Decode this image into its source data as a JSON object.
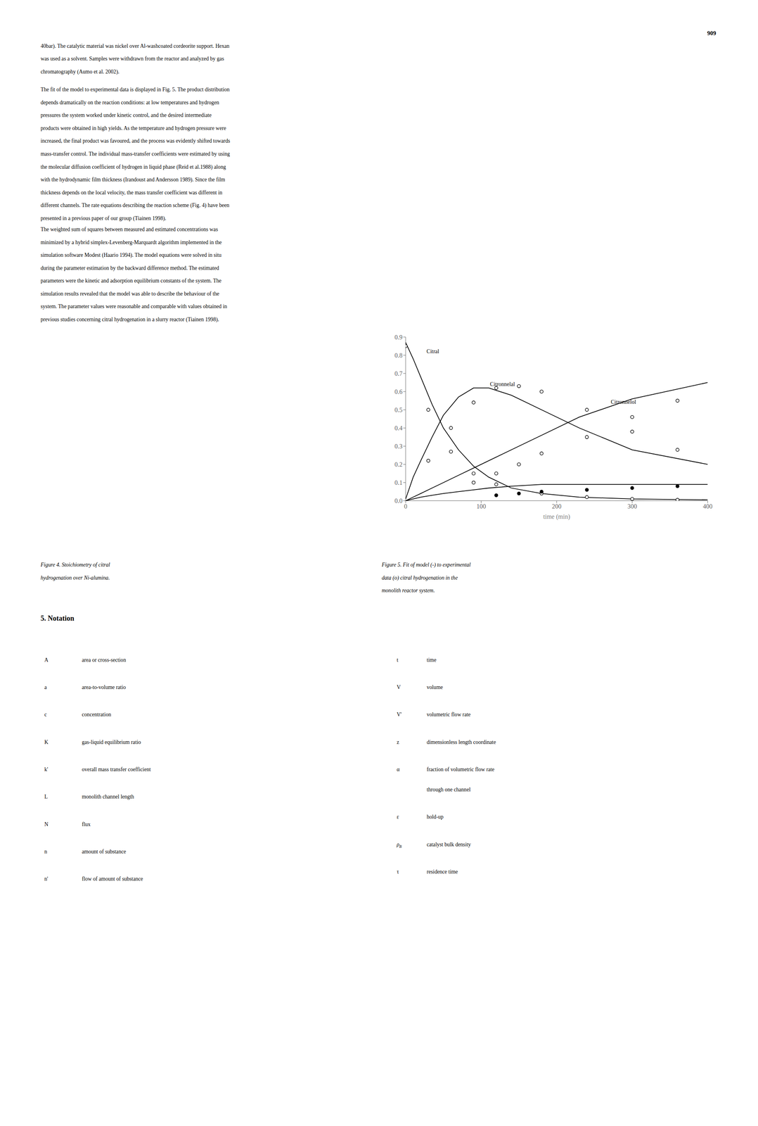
{
  "chart_data": {
    "type": "line",
    "xlabel": "time (min)",
    "xlim": [
      0,
      400
    ],
    "xticks": [
      0,
      100,
      200,
      300,
      400
    ],
    "ylim": [
      0.0,
      0.9
    ],
    "yticks": [
      {
        "value": 0.0,
        "label": "0.0"
      },
      0.1,
      0.2,
      0.3,
      0.4,
      0.5,
      0.6,
      0.7,
      0.8,
      0.9
    ],
    "series": [
      {
        "name": "Citral",
        "type": "line",
        "color": "#000000",
        "line_style": "solid",
        "x": [
          0,
          10,
          20,
          35,
          50,
          70,
          90,
          110,
          140,
          180,
          230,
          300,
          400
        ],
        "values": [
          0.87,
          0.78,
          0.68,
          0.53,
          0.4,
          0.28,
          0.19,
          0.13,
          0.07,
          0.04,
          0.02,
          0.01,
          0.005
        ]
      },
      {
        "name": "Citronnelal",
        "type": "line",
        "color": "#000000",
        "line_style": "solid",
        "x": [
          0,
          10,
          20,
          35,
          50,
          70,
          90,
          110,
          140,
          180,
          230,
          300,
          400
        ],
        "values": [
          0.01,
          0.13,
          0.22,
          0.35,
          0.47,
          0.57,
          0.62,
          0.62,
          0.58,
          0.5,
          0.4,
          0.28,
          0.2
        ]
      },
      {
        "name": "Citronnelol",
        "type": "line",
        "color": "#000000",
        "line_style": "solid",
        "x": [
          0,
          10,
          20,
          35,
          50,
          70,
          90,
          110,
          140,
          180,
          230,
          300,
          400
        ],
        "values": [
          0.0,
          0.02,
          0.04,
          0.07,
          0.1,
          0.14,
          0.18,
          0.22,
          0.28,
          0.36,
          0.46,
          0.56,
          0.65
        ]
      },
      {
        "type": "line",
        "color": "#000000",
        "line_style": "solid",
        "x": [
          0,
          10,
          20,
          35,
          50,
          70,
          90,
          110,
          140,
          180,
          230,
          300,
          400
        ],
        "values": [
          0.0,
          0.01,
          0.02,
          0.03,
          0.04,
          0.05,
          0.06,
          0.07,
          0.08,
          0.09,
          0.09,
          0.09,
          0.09
        ]
      },
      {
        "name": "Citral",
        "type": "scatter",
        "color": "#000000",
        "marker": "open_circle",
        "x": [
          0,
          30,
          60,
          90,
          120,
          180,
          240,
          300,
          360
        ],
        "values": [
          0.85,
          0.5,
          0.27,
          0.15,
          0.09,
          0.04,
          0.02,
          0.01,
          0.005
        ]
      },
      {
        "name": "Citronnelal",
        "type": "scatter",
        "color": "#000000",
        "marker": "open_circle",
        "x": [
          30,
          60,
          90,
          120,
          150,
          180,
          240,
          300,
          360
        ],
        "values": [
          0.22,
          0.4,
          0.54,
          0.62,
          0.63,
          0.6,
          0.5,
          0.38,
          0.28
        ]
      },
      {
        "name": "Citronnelol",
        "type": "scatter",
        "color": "#000000",
        "marker": "open_circle",
        "x": [
          90,
          120,
          150,
          180,
          240,
          300,
          360
        ],
        "values": [
          0.1,
          0.15,
          0.2,
          0.26,
          0.35,
          0.46,
          0.55
        ]
      },
      {
        "type": "scatter",
        "color": "#000000",
        "marker": "filled_circle",
        "x": [
          120,
          150,
          180,
          240,
          300,
          360
        ],
        "values": [
          0.03,
          0.04,
          0.05,
          0.06,
          0.07,
          0.08
        ]
      }
    ],
    "annotations": [
      "Citral",
      "Citronnelal",
      "Citronnelol"
    ]
  },
  "page": {
    "page_number": "909",
    "paragraphs": [
      [
        "40bar). The catalytic material was nickel over Al-washcoated cordeorite support. Hexan",
        "was used as a solvent. Samples were withdrawn from the reactor and analyzed by gas",
        "chromatography (Aumo et al. 2002)."
      ],
      [
        "The fit of the model to experimental data is displayed in Fig. 5. The product distribution",
        "depends dramatically on the reaction conditions: at low temperatures and hydrogen",
        "pressures the system worked under kinetic control, and the desired intermediate",
        "products were obtained in high yields. As the temperature and hydrogen pressure were",
        "increased, the final product was favoured, and the process was evidently shifted towards",
        "mass-transfer control. The individual mass-transfer coefficients were estimated by using",
        "the molecular diffusion coefficient of hydrogen in liquid phase (Reid et al.1988) along",
        "with the hydrodynamic film thickness (Irandoust and Andersson 1989). Since the film",
        "thickness depends on the local velocity, the mass transfer coefficient was different in",
        "different channels. The rate equations describing the reaction scheme (Fig. 4) have been",
        "presented in a previous paper of our group (Tiainen 1998)."
      ],
      [
        "The weighted sum of squares between measured and estimated concentrations was",
        "minimized by a hybrid simplex-Levenberg-Marquardt algorithm implemented in the",
        "simulation software Modest (Haario 1994). The model equations were solved in situ",
        "during the parameter estimation by the backward difference method. The estimated",
        "parameters were the kinetic and adsorption equilibrium constants of the system. The",
        "simulation results revealed that the model was able to describe the behaviour of the",
        "system. The parameter values were reasonable and comparable with values obtained in",
        "previous studies concerning citral hydrogenation in a slurry reactor (Tiainen 1998)."
      ]
    ],
    "captions": [
      [
        "Figure 4. Stoichiometry of citral",
        "hydrogenation over Ni-alumina."
      ],
      [
        "Figure 5. Fit of model (-) to experimental",
        "data (o)  citral hydrogenation in the",
        "monolith reactor system."
      ]
    ],
    "notation_title": "5. Notation",
    "notation_left": [
      [
        "A",
        "area or cross-section"
      ],
      [
        "a",
        "area-to-volume ratio"
      ],
      [
        "c",
        "concentration"
      ],
      [
        "K",
        "gas-liquid equilibrium ratio"
      ],
      [
        "k'",
        "overall mass transfer coefficient"
      ],
      [
        "L",
        "monolith channel length"
      ],
      [
        "N",
        "flux"
      ],
      [
        "n",
        "amount of substance"
      ],
      [
        "n'",
        "flow of amount of substance"
      ]
    ],
    "notation_right": [
      [
        "t",
        "time"
      ],
      [
        "V",
        "volume"
      ],
      [
        "V'",
        "volumetric flow rate"
      ],
      [
        "z",
        "dimensionless length coordinate"
      ],
      [
        "α",
        "fraction of volumetric flow rate",
        "through one channel"
      ],
      [
        "ε",
        "hold-up"
      ],
      [
        "ρB",
        "catalyst bulk density"
      ],
      [
        "τ",
        "residence time"
      ]
    ]
  }
}
